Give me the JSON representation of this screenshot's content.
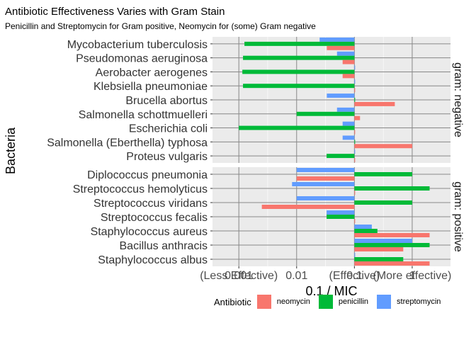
{
  "chart_data": {
    "type": "bar",
    "orientation": "horizontal",
    "title": "Antibiotic Effectiveness Varies with Gram Stain",
    "subtitle": "Penicillin and Streptomycin for Gram positive, Neomycin for (some) Gram negative",
    "xlabel": "0.1 / MIC",
    "ylabel": "Bacteria",
    "x_scale": "log10",
    "xlim": [
      0.00035,
      4.6
    ],
    "x_ticks": [
      0.001,
      0.01,
      0.1,
      1
    ],
    "x_tick_labels": [
      "0.001",
      "0.01",
      "0.1",
      "1"
    ],
    "x_annotations": [
      {
        "x": 0.001,
        "text": "(Less Effective)"
      },
      {
        "x": 0.1,
        "text": "(Effective)"
      },
      {
        "x": 1,
        "text": "(More effective)"
      }
    ],
    "baseline": 0.1,
    "grid": true,
    "legend": {
      "title": "Antibiotic",
      "position": "bottom",
      "entries": [
        {
          "name": "neomycin",
          "color": "#F8766D"
        },
        {
          "name": "penicillin",
          "color": "#00BA38"
        },
        {
          "name": "streptomycin",
          "color": "#619CFF"
        }
      ]
    },
    "series_order": [
      "streptomycin",
      "penicillin",
      "neomycin"
    ],
    "facets": [
      {
        "label": "gram: negative",
        "bacteria": [
          {
            "name": "Proteus vulgaris",
            "neomycin": 0.1,
            "penicillin": 0.033,
            "streptomycin": 0.1
          },
          {
            "name": "Salmonella (Eberthella) typhosa",
            "neomycin": 1.0,
            "penicillin": 0.1,
            "streptomycin": 0.0625
          },
          {
            "name": "Escherichia coli",
            "neomycin": 0.1,
            "penicillin": 0.001,
            "streptomycin": 0.0625
          },
          {
            "name": "Salmonella schottmuelleri",
            "neomycin": 0.125,
            "penicillin": 0.01,
            "streptomycin": 0.05
          },
          {
            "name": "Brucella abortus",
            "neomycin": 0.5,
            "penicillin": 0.1,
            "streptomycin": 0.0333
          },
          {
            "name": "Klebsiella pneumoniae",
            "neomycin": 0.1,
            "penicillin": 0.00118,
            "streptomycin": 0.1
          },
          {
            "name": "Aerobacter aerogenes",
            "neomycin": 0.0625,
            "penicillin": 0.00115,
            "streptomycin": 0.1
          },
          {
            "name": "Pseudomonas aeruginosa",
            "neomycin": 0.0625,
            "penicillin": 0.00118,
            "streptomycin": 0.05
          },
          {
            "name": "Mycobacterium tuberculosis",
            "neomycin": 0.0333,
            "penicillin": 0.00125,
            "streptomycin": 0.025
          }
        ]
      },
      {
        "label": "gram: positive",
        "bacteria": [
          {
            "name": "Staphylococcus albus",
            "neomycin": 2.0,
            "penicillin": 0.7,
            "streptomycin": 0.1
          },
          {
            "name": "Bacillus anthracis",
            "neomycin": 0.7,
            "penicillin": 2.0,
            "streptomycin": 1.0
          },
          {
            "name": "Staphylococcus aureus",
            "neomycin": 2.0,
            "penicillin": 0.25,
            "streptomycin": 0.2
          },
          {
            "name": "Streptococcus fecalis",
            "neomycin": 0.1,
            "penicillin": 0.033,
            "streptomycin": 0.033
          },
          {
            "name": "Streptococcus viridans",
            "neomycin": 0.0025,
            "penicillin": 1.0,
            "streptomycin": 0.01
          },
          {
            "name": "Streptococcus hemolyticus",
            "neomycin": 0.1,
            "penicillin": 2.0,
            "streptomycin": 0.00833
          },
          {
            "name": "Diplococcus pneumonia",
            "neomycin": 0.01,
            "penicillin": 1.0,
            "streptomycin": 0.01
          }
        ]
      }
    ]
  }
}
